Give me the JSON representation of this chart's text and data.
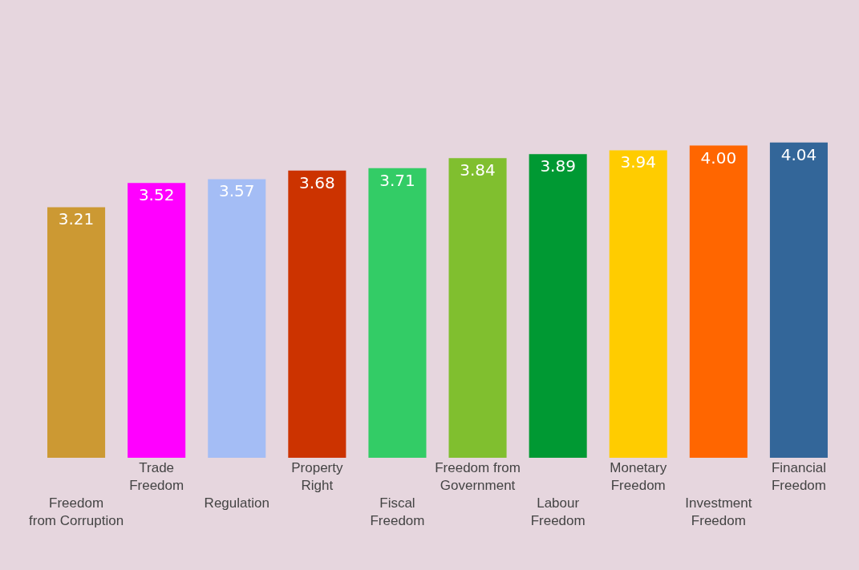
{
  "chart_data": {
    "type": "bar",
    "categories": [
      "Freedom\nfrom Corruption",
      "Trade\nFreedom",
      "Regulation",
      "Property\nRight",
      "Fiscal\nFreedom",
      "Freedom from\nGovernment",
      "Labour\nFreedom",
      "Monetary\nFreedom",
      "Investment\nFreedom",
      "Financial\nFreedom"
    ],
    "values": [
      3.21,
      3.52,
      3.57,
      3.68,
      3.71,
      3.84,
      3.89,
      3.94,
      4.0,
      4.04
    ],
    "colors": [
      "#cc9933",
      "#ff00ff",
      "#a4bdf5",
      "#cc3300",
      "#33cc66",
      "#80bf2f",
      "#009933",
      "#ffcc00",
      "#ff6600",
      "#336699"
    ],
    "value_labels": [
      "3.21",
      "3.52",
      "3.57",
      "3.68",
      "3.71",
      "3.84",
      "3.89",
      "3.94",
      "4.00",
      "4.04"
    ]
  }
}
